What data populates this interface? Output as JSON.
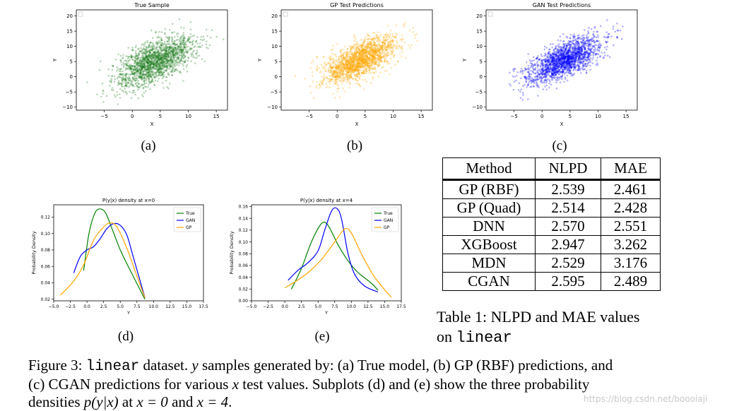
{
  "chart_data": [
    {
      "id": "a",
      "type": "scatter",
      "title": "True Sample",
      "xlabel": "X",
      "ylabel": "Y",
      "xlim": [
        -10,
        17
      ],
      "ylim": [
        -11,
        22
      ],
      "xticks": [
        -5,
        0,
        5,
        10,
        15
      ],
      "yticks": [
        -10,
        -5,
        0,
        5,
        10,
        15,
        20
      ],
      "color": "#1a7a1a",
      "distribution": {
        "mean": [
          4,
          5
        ],
        "cov": [
          [
            12,
            9
          ],
          [
            9,
            17
          ]
        ],
        "n": 1800
      }
    },
    {
      "id": "b",
      "type": "scatter",
      "title": "GP Test Predictions",
      "xlabel": "X",
      "ylabel": "Y",
      "xlim": [
        -10,
        17
      ],
      "ylim": [
        -11,
        22
      ],
      "xticks": [
        -5,
        0,
        5,
        10,
        15
      ],
      "yticks": [
        -10,
        -5,
        0,
        5,
        10,
        15,
        20
      ],
      "color": "#ffa500",
      "distribution": {
        "mean": [
          4,
          5.5
        ],
        "cov": [
          [
            11,
            8.5
          ],
          [
            8.5,
            15
          ]
        ],
        "n": 1800
      }
    },
    {
      "id": "c",
      "type": "scatter",
      "title": "GAN Test Predictions",
      "xlabel": "X",
      "ylabel": "Y",
      "xlim": [
        -10,
        17
      ],
      "ylim": [
        -11,
        22
      ],
      "xticks": [
        -5,
        0,
        5,
        10,
        15
      ],
      "yticks": [
        -10,
        -5,
        0,
        5,
        10,
        15,
        20
      ],
      "color": "#0000ff",
      "distribution": {
        "mean": [
          4,
          5.5
        ],
        "cov": [
          [
            11,
            8.5
          ],
          [
            8.5,
            15
          ]
        ],
        "n": 1800
      }
    },
    {
      "id": "d",
      "type": "line",
      "title": "P(y|x) density at x=0",
      "xlabel": "Y",
      "ylabel": "Probability Density",
      "xlim": [
        -5,
        17.5
      ],
      "ylim": [
        0.018,
        0.135
      ],
      "xticks": [
        -5.0,
        -2.5,
        0.0,
        2.5,
        5.0,
        7.5,
        10.0,
        12.5,
        15.0,
        17.5
      ],
      "yticks": [
        0.02,
        0.04,
        0.06,
        0.08,
        0.1,
        0.12
      ],
      "ytick_decimals": 2,
      "legend": [
        "True",
        "GAN",
        "GP"
      ],
      "series": [
        {
          "name": "True",
          "color": "#008000",
          "x": [
            -0.5,
            0.3,
            1.2,
            2.0,
            2.8,
            3.8,
            5.0,
            6.5,
            8.7
          ],
          "y": [
            0.055,
            0.1,
            0.125,
            0.13,
            0.125,
            0.105,
            0.08,
            0.055,
            0.02
          ]
        },
        {
          "name": "GAN",
          "color": "#0000ff",
          "x": [
            -2.0,
            -1.0,
            0.0,
            1.0,
            2.0,
            3.0,
            4.0,
            5.0,
            6.0,
            7.0,
            8.7
          ],
          "y": [
            0.052,
            0.072,
            0.08,
            0.084,
            0.094,
            0.106,
            0.112,
            0.11,
            0.098,
            0.07,
            0.022
          ]
        },
        {
          "name": "GP",
          "color": "#ffa500",
          "x": [
            -4.0,
            -2.0,
            -0.5,
            1.0,
            2.5,
            3.5,
            4.5,
            6.0,
            7.5,
            8.7
          ],
          "y": [
            0.025,
            0.042,
            0.062,
            0.092,
            0.108,
            0.113,
            0.108,
            0.082,
            0.048,
            0.022
          ]
        }
      ]
    },
    {
      "id": "e",
      "type": "line",
      "title": "P(y|x) density at x=4",
      "xlabel": "Y",
      "ylabel": "Probability Density",
      "xlim": [
        -5,
        17.5
      ],
      "ylim": [
        0.0,
        0.163
      ],
      "xticks": [
        -5.0,
        -2.5,
        0.0,
        2.5,
        5.0,
        7.5,
        10.0,
        12.5,
        15.0,
        17.5
      ],
      "yticks": [
        0.0,
        0.02,
        0.04,
        0.06,
        0.08,
        0.1,
        0.12,
        0.14,
        0.16
      ],
      "ytick_decimals": 2,
      "legend": [
        "True",
        "GAN",
        "GP"
      ],
      "series": [
        {
          "name": "True",
          "color": "#008000",
          "x": [
            1.0,
            2.5,
            4.0,
            5.5,
            6.5,
            8.0,
            9.5,
            11.0,
            13.0,
            14.0
          ],
          "y": [
            0.02,
            0.055,
            0.1,
            0.131,
            0.128,
            0.095,
            0.068,
            0.048,
            0.03,
            0.018
          ]
        },
        {
          "name": "GAN",
          "color": "#0000ff",
          "x": [
            0.5,
            2.0,
            3.5,
            5.0,
            6.0,
            7.0,
            7.8,
            8.5,
            9.5,
            10.5,
            12.0,
            14.0
          ],
          "y": [
            0.035,
            0.052,
            0.065,
            0.085,
            0.12,
            0.152,
            0.157,
            0.14,
            0.08,
            0.045,
            0.025,
            0.015
          ]
        },
        {
          "name": "GP",
          "color": "#ffa500",
          "x": [
            0.0,
            1.5,
            3.5,
            5.5,
            7.5,
            9.0,
            10.0,
            11.5,
            13.5,
            16.0
          ],
          "y": [
            0.022,
            0.032,
            0.048,
            0.07,
            0.1,
            0.122,
            0.115,
            0.08,
            0.04,
            0.006
          ]
        }
      ]
    }
  ],
  "subplot_labels": {
    "a": "(a)",
    "b": "(b)",
    "c": "(c)",
    "d": "(d)",
    "e": "(e)"
  },
  "table": {
    "headers": [
      "Method",
      "NLPD",
      "MAE"
    ],
    "rows": [
      [
        "GP (RBF)",
        "2.539",
        "2.461"
      ],
      [
        "GP (Quad)",
        "2.514",
        "2.428"
      ],
      [
        "DNN",
        "2.570",
        "2.551"
      ],
      [
        "XGBoost",
        "2.947",
        "3.262"
      ],
      [
        "MDN",
        "2.529",
        "3.176"
      ],
      [
        "CGAN",
        "2.595",
        "2.489"
      ]
    ],
    "caption_prefix": "Table 1:  NLPD and MAE values",
    "caption_line2_prefix": "on ",
    "caption_dataset": "linear"
  },
  "figure_caption": {
    "label": "Figure 3: ",
    "dataset": "linear",
    "part1": " dataset. ",
    "var_y": "y",
    "part2": " samples generated by: (a) True model, (b) GP (RBF) predictions, and",
    "line2_part1": "(c) CGAN predictions for various ",
    "var_x": "x",
    "line2_part2": " test values.  Subplots (d) and (e) show the three probability",
    "line3_part1": "densities ",
    "expr_p": "p(y|x)",
    "line3_part2": " at ",
    "expr_x0": "x = 0",
    "line3_and": " and ",
    "expr_x4": "x = 4",
    "line3_end": "."
  },
  "watermark": "https://blog.csdn.net/boooiaji"
}
